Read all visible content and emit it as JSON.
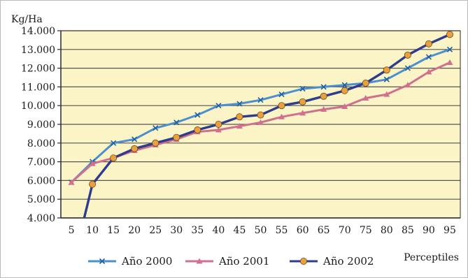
{
  "chart_data": {
    "type": "line",
    "ylabel": "Kg/Ha",
    "xlabel": "Perceptiles",
    "x": [
      5,
      10,
      15,
      20,
      25,
      30,
      35,
      40,
      45,
      50,
      55,
      60,
      65,
      70,
      75,
      80,
      85,
      90,
      95
    ],
    "ylim": [
      4000,
      14000
    ],
    "y_ticks": [
      "4.000",
      "5.000",
      "6.000",
      "7.000",
      "8.000",
      "9.000",
      "10.000",
      "11.000",
      "12.000",
      "13.000",
      "14.000"
    ],
    "x_ticks": [
      "5",
      "10",
      "15",
      "20",
      "25",
      "30",
      "35",
      "40",
      "45",
      "50",
      "55",
      "60",
      "65",
      "70",
      "75",
      "80",
      "85",
      "90",
      "95"
    ],
    "grid": "horizontal",
    "legend_position": "bottom",
    "series": [
      {
        "name": "Año 2000",
        "color": "#4a8fd0",
        "marker": "x",
        "values": [
          5900,
          7000,
          8000,
          8200,
          8800,
          9100,
          9500,
          10000,
          10100,
          10300,
          10600,
          10900,
          11000,
          11100,
          11200,
          11400,
          12000,
          12600,
          13000
        ]
      },
      {
        "name": "Año 2001",
        "color": "#d0708f",
        "marker": "triangle",
        "values": [
          5900,
          6900,
          7200,
          7600,
          7900,
          8200,
          8600,
          8700,
          8900,
          9100,
          9400,
          9600,
          9800,
          9950,
          10400,
          10600,
          11100,
          11800,
          12300
        ]
      },
      {
        "name": "Año 2002",
        "color": "#2e3c8c",
        "marker_color": "#e8a040",
        "marker": "circle",
        "start": [
          7.5,
          3500
        ],
        "values": [
          null,
          5800,
          7200,
          7700,
          8000,
          8300,
          8700,
          9000,
          9400,
          9500,
          10000,
          10200,
          10500,
          10800,
          11200,
          11900,
          12700,
          13300,
          13800
        ]
      }
    ]
  },
  "colors": {
    "plot_background": "#fbf4c6",
    "frame": "#2a2a2a",
    "grid": "#555555"
  }
}
